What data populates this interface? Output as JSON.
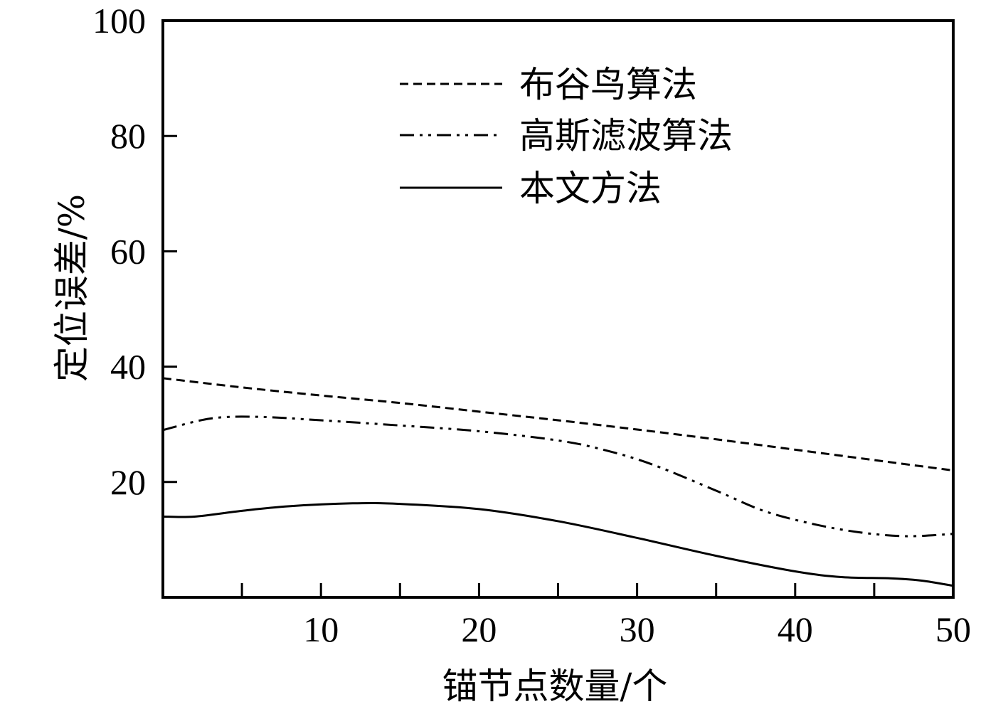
{
  "chart_data": {
    "type": "line",
    "title": "",
    "xlabel": "锚节点数量/个",
    "ylabel": "定位误差/%",
    "xlim": [
      0,
      50
    ],
    "ylim": [
      0,
      100
    ],
    "x_ticks": [
      10,
      20,
      30,
      40,
      50
    ],
    "x_minor_ticks": [
      5,
      15,
      25,
      35,
      45
    ],
    "y_ticks": [
      20,
      40,
      60,
      80,
      100
    ],
    "grid": false,
    "legend_position": "top-center",
    "series": [
      {
        "name": "布谷鸟算法",
        "style": "dashed",
        "color": "#000000",
        "x": [
          0,
          5,
          10,
          15,
          20,
          25,
          30,
          35,
          40,
          45,
          50
        ],
        "y": [
          38,
          36.4,
          35.0,
          33.7,
          32.2,
          30.7,
          29.1,
          27.4,
          25.6,
          23.8,
          22.0
        ]
      },
      {
        "name": "高斯滤波算法",
        "style": "dash-dot-dot",
        "color": "#000000",
        "x": [
          0,
          3,
          6,
          10,
          15,
          20,
          25,
          28,
          31,
          35,
          38,
          41,
          44,
          47,
          50
        ],
        "y": [
          29.0,
          31.0,
          31.3,
          30.7,
          29.8,
          28.8,
          27.2,
          25.5,
          23.0,
          18.5,
          15.0,
          12.8,
          11.3,
          10.6,
          11.0
        ]
      },
      {
        "name": "本文方法",
        "style": "solid",
        "color": "#000000",
        "x": [
          0,
          2,
          5,
          8,
          12,
          15,
          20,
          25,
          30,
          35,
          40,
          43,
          46,
          48,
          50
        ],
        "y": [
          14.0,
          14.0,
          15.0,
          15.8,
          16.3,
          16.2,
          15.3,
          13.2,
          10.3,
          7.2,
          4.5,
          3.5,
          3.3,
          2.9,
          2.0
        ]
      }
    ]
  }
}
